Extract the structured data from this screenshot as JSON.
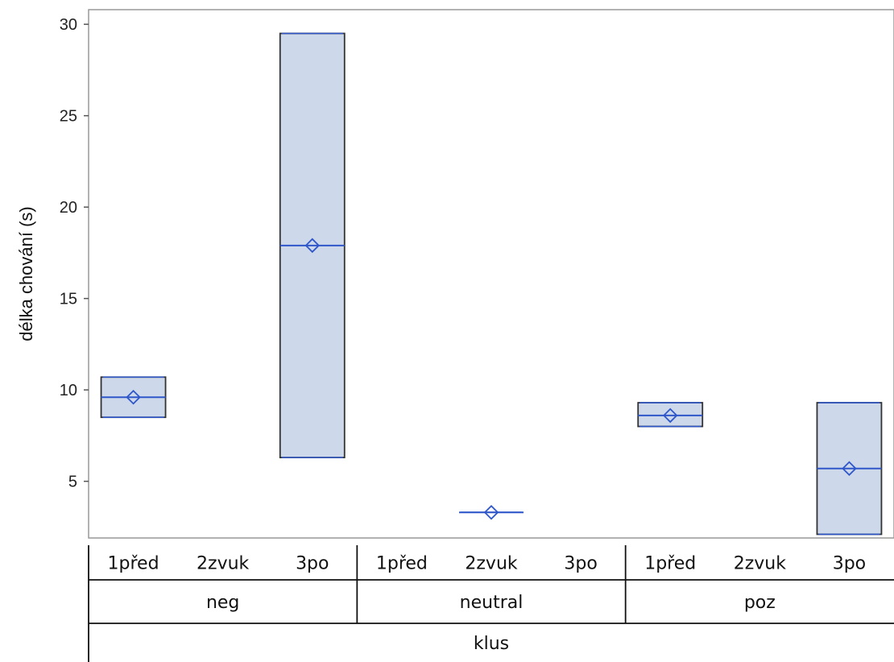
{
  "chart_data": {
    "type": "box",
    "ylabel": "délka chování (s)",
    "ylim": [
      1.9,
      30.8
    ],
    "yticks": [
      5,
      10,
      15,
      20,
      25,
      30
    ],
    "grid": false,
    "x_levels": {
      "inner": [
        "1před",
        "2zvuk",
        "3po",
        "1před",
        "2zvuk",
        "3po",
        "1před",
        "2zvuk",
        "3po"
      ],
      "middle": [
        "neg",
        "neutral",
        "poz"
      ],
      "outer": [
        "klus"
      ]
    },
    "boxes": [
      {
        "group": "neg",
        "phase": "1před",
        "min": 8.5,
        "q1": 8.5,
        "median": 9.6,
        "q3": 10.7,
        "max": 10.7,
        "mean": 9.6
      },
      {
        "group": "neg",
        "phase": "2zvuk",
        "present": false
      },
      {
        "group": "neg",
        "phase": "3po",
        "min": 6.3,
        "q1": 6.3,
        "median": 17.9,
        "q3": 29.5,
        "max": 29.5,
        "mean": 17.9
      },
      {
        "group": "neutral",
        "phase": "1před",
        "present": false
      },
      {
        "group": "neutral",
        "phase": "2zvuk",
        "min": 3.3,
        "q1": 3.3,
        "median": 3.3,
        "q3": 3.3,
        "max": 3.3,
        "mean": 3.3
      },
      {
        "group": "neutral",
        "phase": "3po",
        "present": false
      },
      {
        "group": "poz",
        "phase": "1před",
        "min": 8.0,
        "q1": 8.0,
        "median": 8.6,
        "q3": 9.3,
        "max": 9.3,
        "mean": 8.6
      },
      {
        "group": "poz",
        "phase": "2zvuk",
        "present": false
      },
      {
        "group": "poz",
        "phase": "3po",
        "min": 2.1,
        "q1": 2.1,
        "median": 5.7,
        "q3": 9.3,
        "max": 9.3,
        "mean": 5.7
      }
    ],
    "colors": {
      "box_fill": "#cdd8ea",
      "box_stroke": "#333333",
      "median": "#2f57c9",
      "mean_marker": "#2f57c9",
      "axis": "#999999"
    }
  }
}
